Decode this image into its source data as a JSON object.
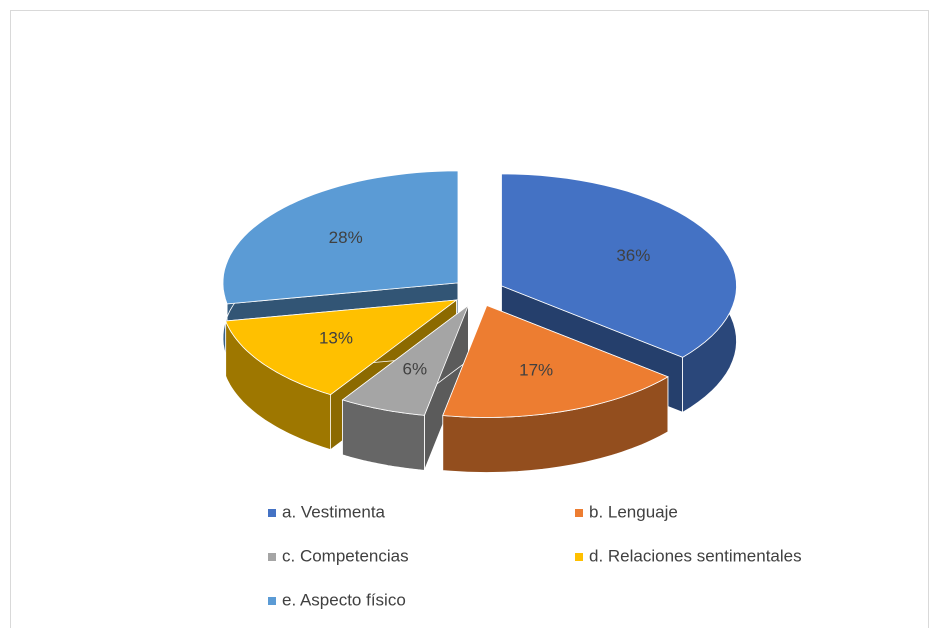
{
  "chart_data": {
    "type": "pie3d",
    "categories": [
      "a. Vestimenta",
      "b. Lenguaje",
      "c. Competencias",
      "d. Relaciones sentimentales",
      "e. Aspecto físico"
    ],
    "values": [
      36,
      17,
      6,
      13,
      28
    ],
    "value_labels": [
      "36%",
      "17%",
      "6%",
      "13%",
      "28%"
    ],
    "colors": [
      "#4472c4",
      "#ed7d31",
      "#a5a5a5",
      "#ffc000",
      "#5b9bd5"
    ],
    "legend": "bottom"
  }
}
